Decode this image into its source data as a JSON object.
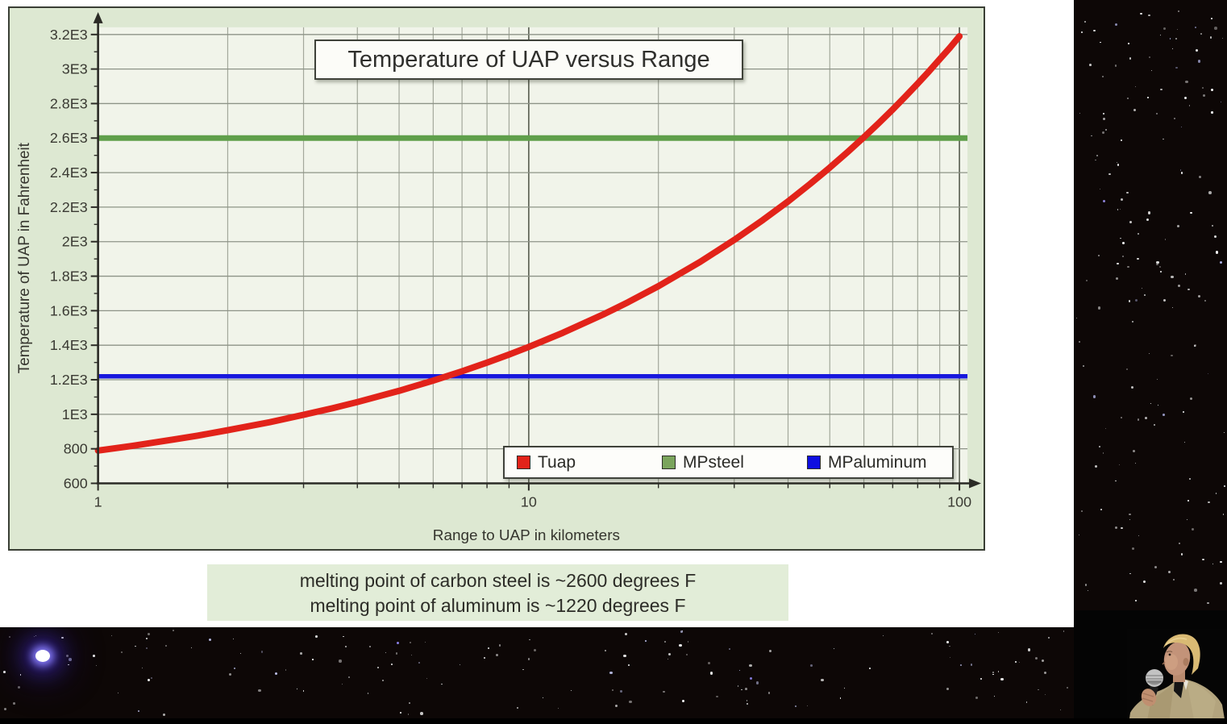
{
  "slide": {
    "caption": {
      "lines": [
        "melting point of carbon steel is ~2600 degrees F",
        "melting point of aluminum is ~1220 degrees F"
      ]
    }
  },
  "chart_data": {
    "type": "line",
    "title": "Temperature of UAP versus Range",
    "xlabel": "Range to UAP in kilometers",
    "ylabel": "Temperature of UAP in Fahrenheit",
    "x_scale": "log10",
    "xlim": [
      1,
      100
    ],
    "ylim": [
      600,
      3200
    ],
    "grid": true,
    "x_major_ticks": [
      1,
      10,
      100
    ],
    "x_tick_labels": [
      "1",
      "10",
      "100"
    ],
    "x_minor_ticks": [
      2,
      3,
      4,
      5,
      6,
      7,
      8,
      9,
      20,
      30,
      40,
      50,
      60,
      70,
      80,
      90
    ],
    "y_major_tick_step": 200,
    "y_minor_tick_step": 100,
    "y_tick_labels": [
      "600",
      "800",
      "1E3",
      "1.2E3",
      "1.4E3",
      "1.6E3",
      "1.8E3",
      "2E3",
      "2.2E3",
      "2.4E3",
      "2.6E3",
      "2.8E3",
      "3E3",
      "3.2E3"
    ],
    "legend_position": "inside-bottom-right",
    "series": [
      {
        "name": "Tuap",
        "style": "curve",
        "color": "#e2231a",
        "points": [
          [
            1,
            790
          ],
          [
            1.2,
            817
          ],
          [
            1.5,
            854
          ],
          [
            1.7,
            876
          ],
          [
            2,
            908
          ],
          [
            2.5,
            954
          ],
          [
            3,
            997
          ],
          [
            3.5,
            1035
          ],
          [
            4,
            1071
          ],
          [
            4.5,
            1105
          ],
          [
            5,
            1136
          ],
          [
            6,
            1195
          ],
          [
            7,
            1249
          ],
          [
            8,
            1299
          ],
          [
            9,
            1346
          ],
          [
            10,
            1390
          ],
          [
            12,
            1472
          ],
          [
            15,
            1582
          ],
          [
            17,
            1649
          ],
          [
            20,
            1742
          ],
          [
            25,
            1883
          ],
          [
            30,
            2010
          ],
          [
            35,
            2126
          ],
          [
            40,
            2233
          ],
          [
            45,
            2334
          ],
          [
            50,
            2429
          ],
          [
            55,
            2519
          ],
          [
            60,
            2605
          ],
          [
            65,
            2687
          ],
          [
            70,
            2766
          ],
          [
            75,
            2842
          ],
          [
            80,
            2916
          ],
          [
            85,
            2987
          ],
          [
            90,
            3057
          ],
          [
            95,
            3123
          ],
          [
            100,
            3190
          ]
        ]
      },
      {
        "name": "MPsteel",
        "style": "hline",
        "color": "#5f9f4a",
        "value": 2600
      },
      {
        "name": "MPaluminum",
        "style": "hline",
        "color": "#1717dd",
        "value": 1220
      }
    ]
  },
  "legend_items": [
    {
      "label": "Tuap",
      "swatch": "#e2231a"
    },
    {
      "label": "MPsteel",
      "swatch": "#7aa45c"
    },
    {
      "label": "MPaluminum",
      "swatch": "#0f0fe0"
    }
  ],
  "colors": {
    "slide_bg": "#ffffff",
    "panel_bg": "#dde8d2",
    "plot_bg": "#f1f4ea",
    "grid_minor": "#a3a89b",
    "grid_decade": "#565b4e",
    "grid_horizontal": "#8d9387",
    "axis": "#2b2b26",
    "tick_text": "#3a3a33",
    "caption_bg": "#e2edd8",
    "stage_bg": "#0d0706"
  }
}
